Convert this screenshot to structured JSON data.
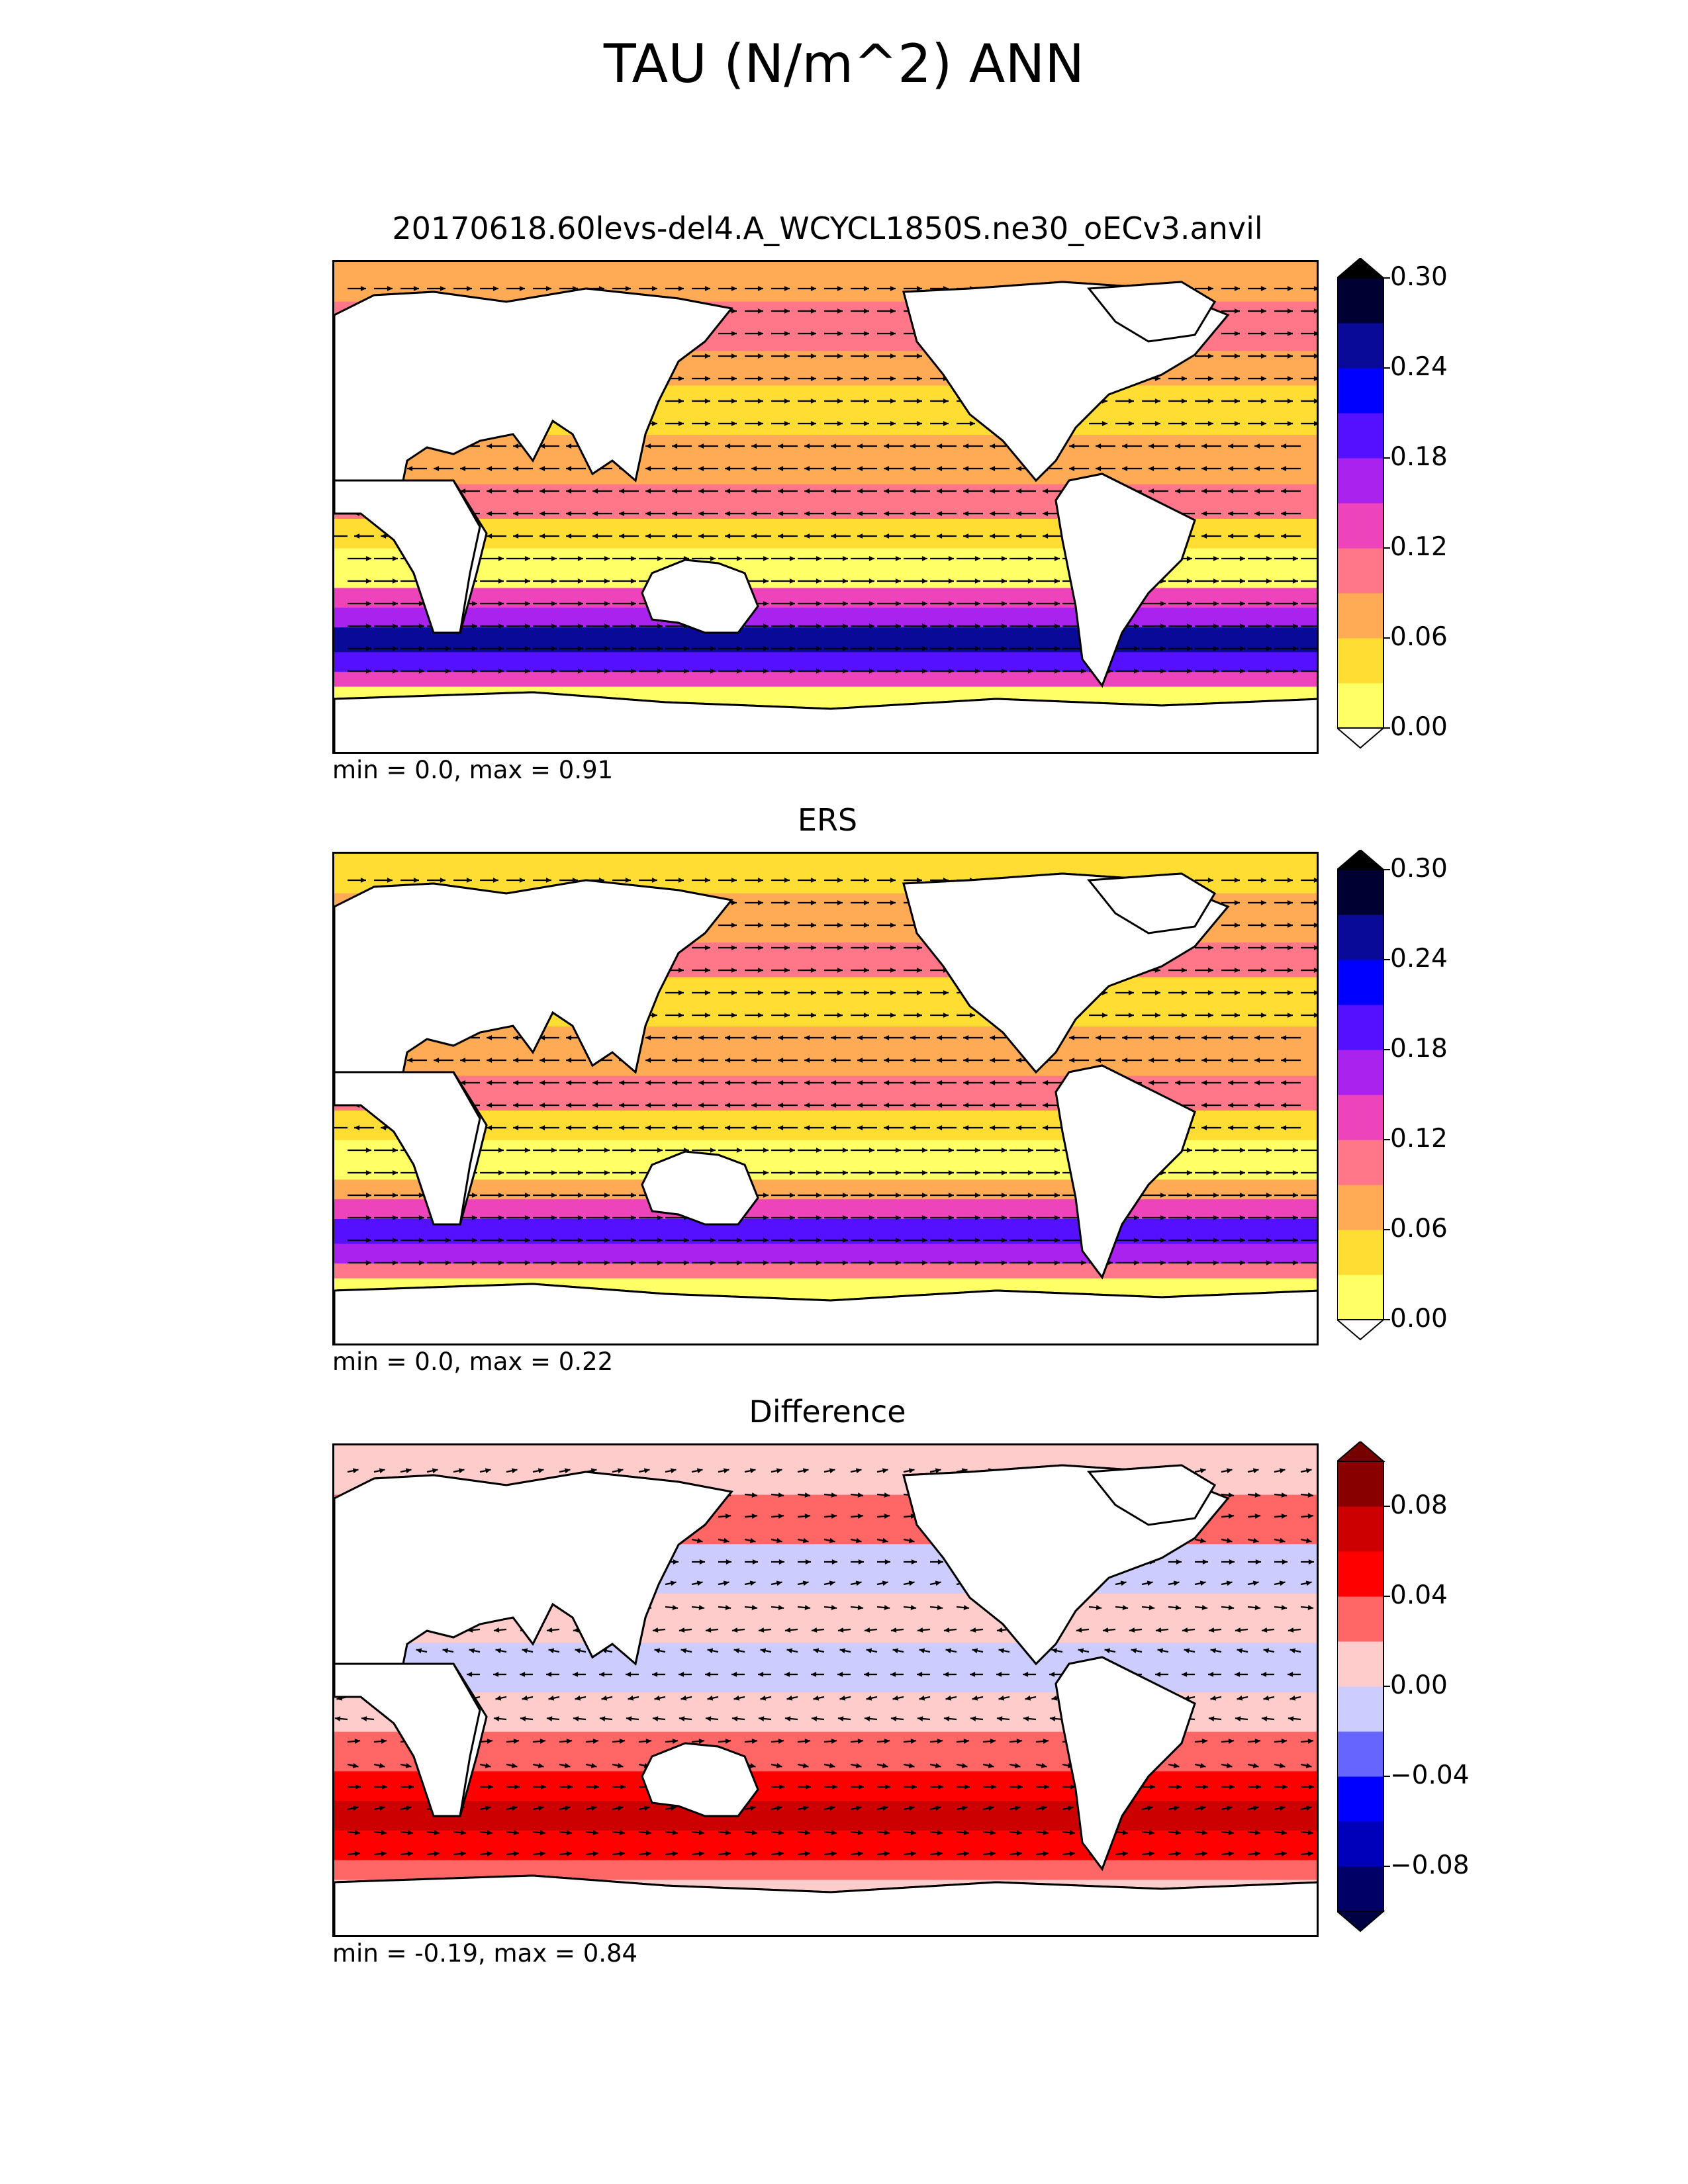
{
  "figure": {
    "title": "TAU (N/m^2) ANN"
  },
  "panels": [
    {
      "id": "test",
      "title": "20170618.60levs-del4.A_WCYCL1850S.ne30_oECv3.anvil",
      "stats": "min = 0.0, max = 0.91",
      "colorbar": {
        "ticks": [
          "0.00",
          "0.06",
          "0.12",
          "0.18",
          "0.24",
          "0.30"
        ],
        "colors": [
          "#ffff66",
          "#ffdd33",
          "#ffaa55",
          "#ff7788",
          "#ee44bb",
          "#aa22ee",
          "#5511ff",
          "#0000ff",
          "#0a0a99",
          "#000033"
        ],
        "over_color": "#000000",
        "under_color": "#ffffff"
      }
    },
    {
      "id": "reference",
      "title": "ERS",
      "stats": "min = 0.0, max = 0.22",
      "colorbar": {
        "ticks": [
          "0.00",
          "0.06",
          "0.12",
          "0.18",
          "0.24",
          "0.30"
        ],
        "colors": [
          "#ffff66",
          "#ffdd33",
          "#ffaa55",
          "#ff7788",
          "#ee44bb",
          "#aa22ee",
          "#5511ff",
          "#0000ff",
          "#0a0a99",
          "#000033"
        ],
        "over_color": "#000000",
        "under_color": "#ffffff"
      }
    },
    {
      "id": "difference",
      "title": "Difference",
      "stats": "min = -0.19, max = 0.84",
      "colorbar": {
        "ticks": [
          "0.08",
          "0.04",
          "0.00",
          "−0.04",
          "−0.08"
        ],
        "colors": [
          "#000066",
          "#0000bb",
          "#0000ff",
          "#6666ff",
          "#ccccff",
          "#ffcccc",
          "#ff6666",
          "#ff0000",
          "#cc0000",
          "#880000"
        ],
        "over_color": "#770000",
        "under_color": "#000044"
      }
    }
  ],
  "colors": {
    "land": "#ffffff",
    "coastline": "#000000",
    "vectors": "#000000"
  }
}
